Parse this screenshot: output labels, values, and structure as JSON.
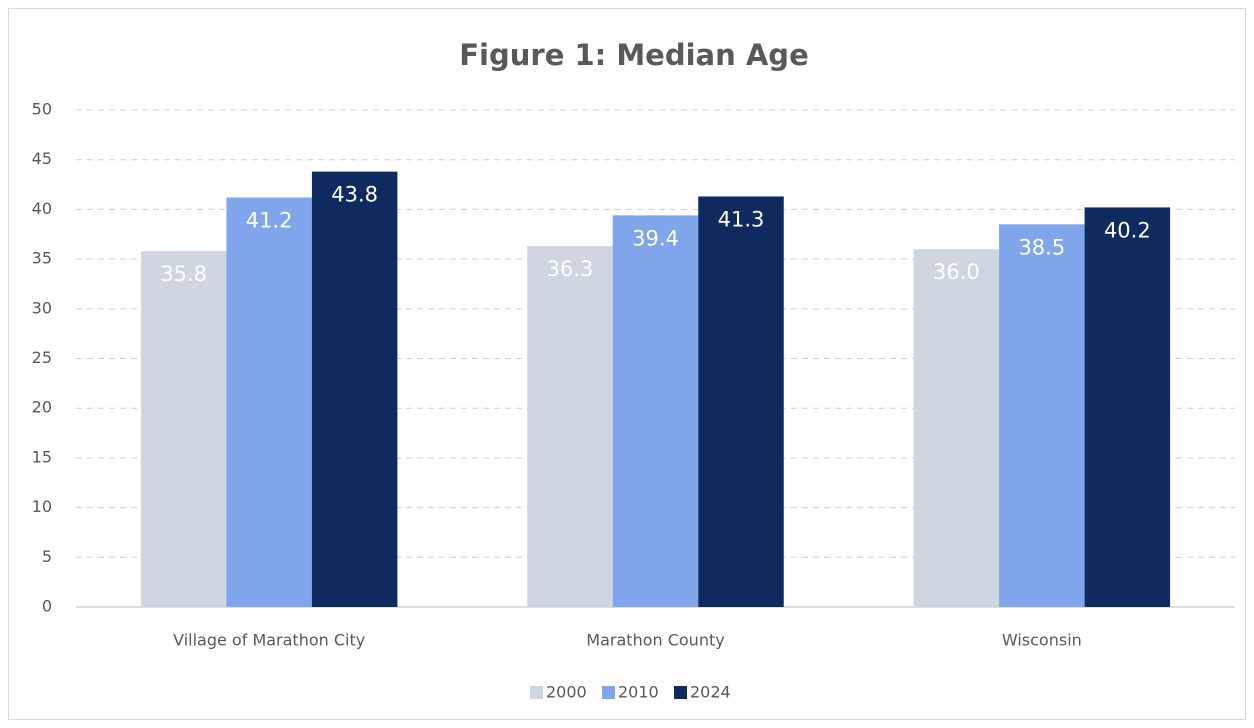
{
  "chart_data": {
    "type": "bar",
    "title": "Figure 1: Median Age",
    "categories": [
      "Village of Marathon City",
      "Marathon County",
      "Wisconsin"
    ],
    "series": [
      {
        "name": "2000",
        "color": "#cfd5e1",
        "values": [
          35.8,
          36.3,
          36.0
        ],
        "value_labels": [
          "35.8",
          "36.3",
          "36.0"
        ]
      },
      {
        "name": "2010",
        "color": "#7fa5ea",
        "values": [
          41.2,
          39.4,
          38.5
        ],
        "value_labels": [
          "41.2",
          "39.4",
          "38.5"
        ]
      },
      {
        "name": "2024",
        "color": "#0e2a5e",
        "values": [
          43.8,
          41.3,
          40.2
        ],
        "value_labels": [
          "43.8",
          "41.3",
          "40.2"
        ]
      }
    ],
    "ylim": [
      0,
      50
    ],
    "yticks": [
      0,
      5,
      10,
      15,
      20,
      25,
      30,
      35,
      40,
      45,
      50
    ],
    "grid": true,
    "legend": "bottom"
  }
}
